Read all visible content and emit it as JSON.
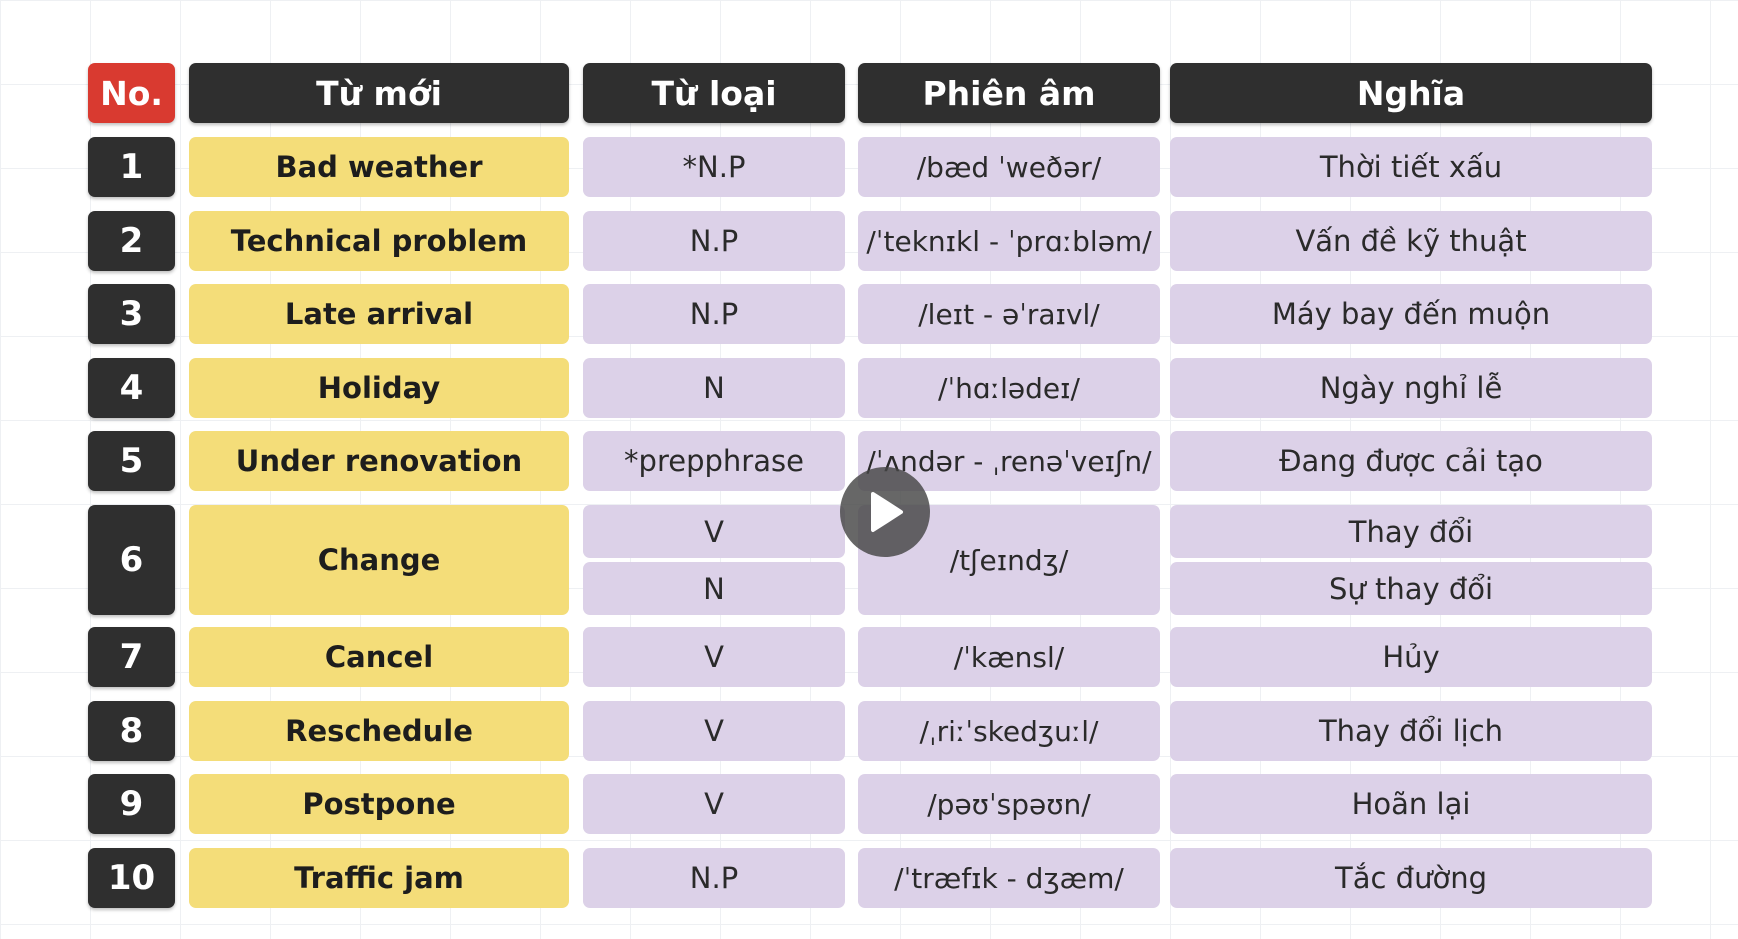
{
  "header": {
    "no": "No.",
    "word": "Từ mới",
    "pos": "Từ loại",
    "ipa": "Phiên âm",
    "meaning": "Nghĩa"
  },
  "rows": [
    {
      "no": "1",
      "word": "Bad weather",
      "pos": "*N.P",
      "ipa": "/bæd ˈweðər/",
      "meaning": "Thời tiết xấu"
    },
    {
      "no": "2",
      "word": "Technical problem",
      "pos": "N.P",
      "ipa": "/ˈteknɪkl - ˈprɑːbləm/",
      "meaning": "Vấn đề kỹ thuật"
    },
    {
      "no": "3",
      "word": "Late arrival",
      "pos": "N.P",
      "ipa": "/leɪt - əˈraɪvl/",
      "meaning": "Máy bay đến muộn"
    },
    {
      "no": "4",
      "word": "Holiday",
      "pos": "N",
      "ipa": "/ˈhɑːlədeɪ/",
      "meaning": "Ngày nghỉ lễ"
    },
    {
      "no": "5",
      "word": "Under renovation",
      "pos": "*prepphrase",
      "ipa": "/ˈʌndər - ˌrenəˈveɪʃn/",
      "meaning": "Đang được cải tạo"
    },
    {
      "no": "6",
      "word": "Change",
      "pos": "V",
      "pos2": "N",
      "ipa": "/tʃeɪndʒ/",
      "meaning": "Thay đổi",
      "meaning2": "Sự thay đổi"
    },
    {
      "no": "7",
      "word": "Cancel",
      "pos": "V",
      "ipa": "/ˈkænsl/",
      "meaning": "Hủy"
    },
    {
      "no": "8",
      "word": "Reschedule",
      "pos": "V",
      "ipa": "/ˌriːˈskedʒuːl/",
      "meaning": "Thay đổi lịch"
    },
    {
      "no": "9",
      "word": "Postpone",
      "pos": "V",
      "ipa": "/pəʊˈspəʊn/",
      "meaning": "Hoãn lại"
    },
    {
      "no": "10",
      "word": "Traffic jam",
      "pos": "N.P",
      "ipa": "/ˈtræfɪk - dʒæm/",
      "meaning": "Tắc đường"
    }
  ],
  "colors": {
    "header_bg": "#2f2f2f",
    "no_header_bg": "#d93a30",
    "word_bg": "#f4dd79",
    "info_bg": "#dcd1e8"
  },
  "icons": {
    "play": "play-icon"
  }
}
